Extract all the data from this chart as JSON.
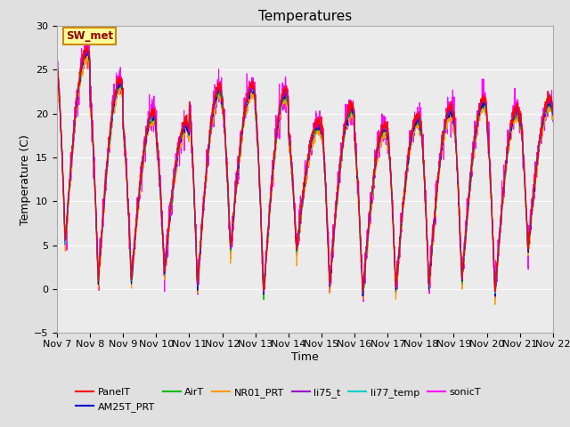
{
  "title": "Temperatures",
  "xlabel": "Time",
  "ylabel": "Temperature (C)",
  "ylim": [
    -5,
    30
  ],
  "n_days": 15,
  "x_tick_labels": [
    "Nov 7",
    "Nov 8",
    "Nov 9",
    "Nov 10",
    "Nov 11",
    "Nov 12",
    "Nov 13",
    "Nov 14",
    "Nov 15",
    "Nov 16",
    "Nov 17",
    "Nov 18",
    "Nov 19",
    "Nov 20",
    "Nov 21",
    "Nov 22"
  ],
  "series_order": [
    "PanelT",
    "AM25T_PRT",
    "AirT",
    "NR01_PRT",
    "li75_t",
    "li77_temp",
    "sonicT"
  ],
  "series_colors": {
    "PanelT": "#ff0000",
    "AM25T_PRT": "#0000cc",
    "AirT": "#00bb00",
    "NR01_PRT": "#ff9900",
    "li75_t": "#9900cc",
    "li77_temp": "#00cccc",
    "sonicT": "#ff00ff"
  },
  "annotation_text": "SW_met",
  "annotation_fg": "#8B0000",
  "annotation_bg": "#ffff99",
  "annotation_border": "#cc8800",
  "fig_bg": "#e0e0e0",
  "plot_bg": "#ebebeb",
  "grid_color": "#ffffff",
  "title_fontsize": 11,
  "label_fontsize": 9,
  "tick_fontsize": 8,
  "legend_fontsize": 8,
  "n_points": 2160,
  "peak_temps": [
    27.2,
    23.7,
    20.0,
    18.8,
    22.8,
    23.0,
    22.5,
    18.8,
    20.7,
    18.5,
    19.5,
    20.5,
    21.5,
    20.5,
    21.5
  ],
  "min_temps": [
    5.5,
    1.0,
    1.0,
    2.0,
    0.3,
    4.5,
    -0.5,
    4.5,
    0.5,
    -0.5,
    0.0,
    0.5,
    1.0,
    -0.5,
    4.5
  ]
}
